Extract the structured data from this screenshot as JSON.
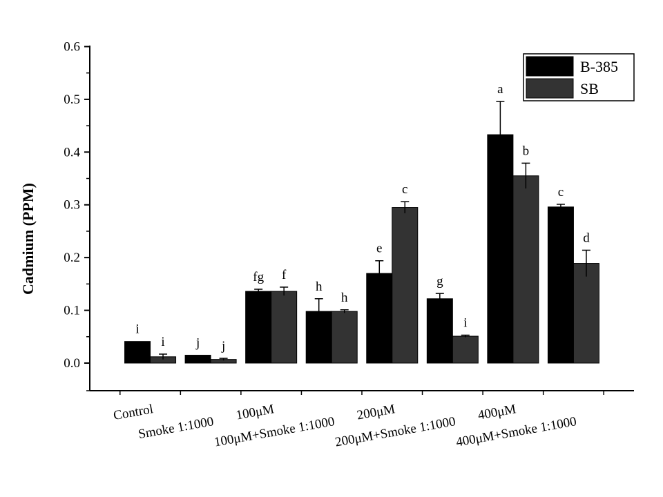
{
  "chart_data": {
    "type": "bar",
    "title": "",
    "xlabel": "",
    "ylabel": "Cadmium (PPM)",
    "ylim": [
      -0.05,
      0.6
    ],
    "yticks": [
      "0.0",
      "0.1",
      "0.2",
      "0.3",
      "0.4",
      "0.5",
      "0.6"
    ],
    "grid": false,
    "legend_position": "top-right",
    "categories": [
      "Control",
      "Smoke 1:1000",
      "100μM",
      "100μM+Smoke 1:1000",
      "200μM",
      "200μM+Smoke 1:1000",
      "400μM",
      "400μM+Smoke 1:1000"
    ],
    "series": [
      {
        "name": "B-385",
        "color": "#000000",
        "values": [
          0.041,
          0.015,
          0.136,
          0.098,
          0.17,
          0.122,
          0.433,
          0.296
        ],
        "errors": [
          0.0,
          0.0,
          0.004,
          0.024,
          0.024,
          0.01,
          0.063,
          0.005
        ],
        "letters": [
          "i",
          "j",
          "fg",
          "h",
          "e",
          "g",
          "a",
          "c"
        ]
      },
      {
        "name": "SB",
        "color": "#333333",
        "values": [
          0.012,
          0.007,
          0.136,
          0.098,
          0.295,
          0.051,
          0.355,
          0.189
        ],
        "errors": [
          0.005,
          0.002,
          0.008,
          0.003,
          0.011,
          0.002,
          0.024,
          0.025
        ],
        "letters": [
          "i",
          "j",
          "f",
          "h",
          "c",
          "i",
          "b",
          "d"
        ]
      }
    ]
  }
}
